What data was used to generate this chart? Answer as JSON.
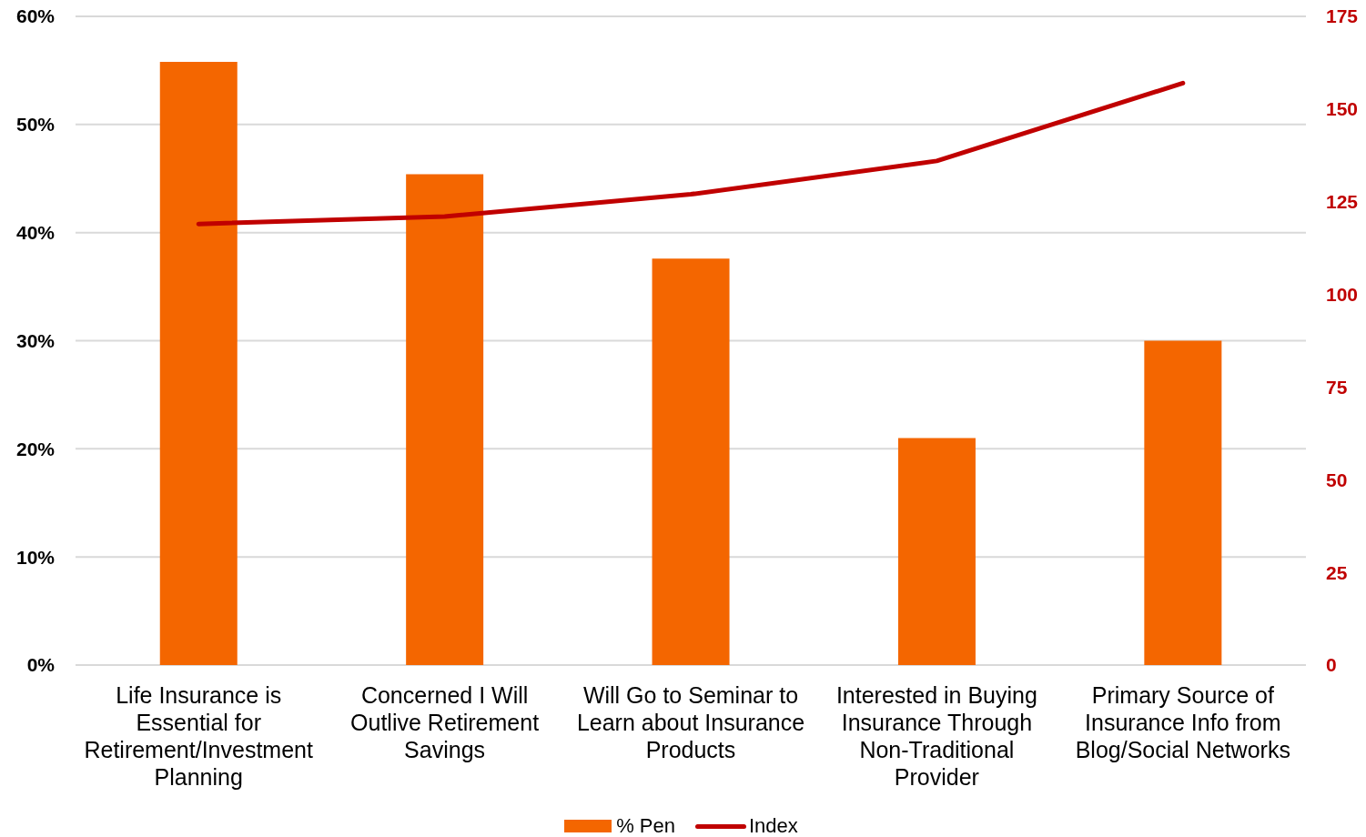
{
  "chart_data": {
    "type": "bar",
    "categories": [
      "Life Insurance is Essential for Retirement/Investment Planning",
      "Concerned I Will Outlive Retirement Savings",
      "Will Go to Seminar to Learn about Insurance Products",
      "Interested in Buying Insurance Through Non-Traditional Provider",
      "Primary Source of Insurance Info from Blog/Social Networks"
    ],
    "series": [
      {
        "name": "% Pen",
        "type": "bar",
        "color": "#f46600",
        "values": [
          55.8,
          45.4,
          37.6,
          21.0,
          30.0
        ]
      },
      {
        "name": "Index",
        "type": "line",
        "axis": "y2",
        "color": "#c00000",
        "values": [
          119,
          121,
          127,
          136,
          157
        ]
      }
    ],
    "ylim": [
      0,
      60
    ],
    "yticks": [
      {
        "value": 0,
        "label": "0%"
      },
      {
        "value": 10,
        "label": "10%"
      },
      {
        "value": 20,
        "label": "20%"
      },
      {
        "value": 30,
        "label": "30%"
      },
      {
        "value": 40,
        "label": "40%"
      },
      {
        "value": 50,
        "label": "50%"
      },
      {
        "value": 60,
        "label": "60%"
      }
    ],
    "y2lim": [
      0,
      175
    ],
    "y2ticks": [
      0,
      25,
      50,
      75,
      100,
      125,
      150,
      175
    ],
    "grid": "y",
    "legend": "bottom"
  }
}
